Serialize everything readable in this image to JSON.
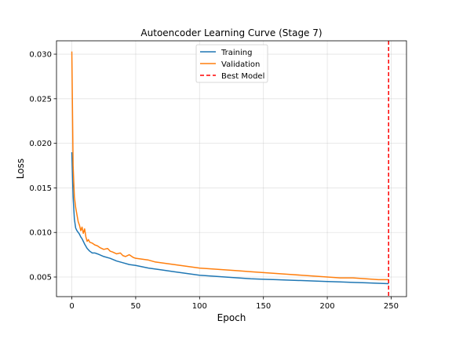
{
  "chart_data": {
    "type": "line",
    "title": "Autoencoder Learning Curve (Stage 7)",
    "xlabel": "Epoch",
    "ylabel": "Loss",
    "xlim": [
      -12,
      262
    ],
    "ylim": [
      0.0028,
      0.0315
    ],
    "xticks": [
      0,
      50,
      100,
      150,
      200,
      250
    ],
    "yticks": [
      0.005,
      0.01,
      0.015,
      0.02,
      0.025,
      0.03
    ],
    "ytick_labels": [
      "0.005",
      "0.010",
      "0.015",
      "0.020",
      "0.025",
      "0.030"
    ],
    "grid": true,
    "legend_position": "top-center",
    "series": [
      {
        "name": "Training",
        "color": "#1f77b4",
        "x": [
          0,
          1,
          2,
          3,
          4,
          5,
          6,
          7,
          8,
          9,
          10,
          12,
          14,
          16,
          18,
          20,
          25,
          30,
          35,
          40,
          45,
          50,
          60,
          70,
          80,
          90,
          100,
          110,
          120,
          130,
          140,
          150,
          160,
          170,
          180,
          190,
          200,
          210,
          220,
          230,
          240,
          248
        ],
        "y": [
          0.019,
          0.014,
          0.0115,
          0.0105,
          0.0102,
          0.01,
          0.0098,
          0.0095,
          0.0093,
          0.009,
          0.0087,
          0.0082,
          0.0079,
          0.0077,
          0.0077,
          0.0076,
          0.0073,
          0.0071,
          0.0068,
          0.0066,
          0.0064,
          0.0063,
          0.006,
          0.0058,
          0.0056,
          0.0054,
          0.0052,
          0.0051,
          0.005,
          0.0049,
          0.0048,
          0.00475,
          0.0047,
          0.00465,
          0.0046,
          0.00455,
          0.0045,
          0.00445,
          0.0044,
          0.00435,
          0.0043,
          0.00425
        ]
      },
      {
        "name": "Validation",
        "color": "#ff7f0e",
        "x": [
          0,
          1,
          2,
          3,
          4,
          5,
          6,
          7,
          8,
          9,
          10,
          11,
          12,
          13,
          14,
          16,
          18,
          20,
          22,
          25,
          28,
          30,
          32,
          35,
          38,
          40,
          42,
          45,
          48,
          50,
          55,
          60,
          65,
          70,
          75,
          80,
          85,
          90,
          95,
          100,
          110,
          120,
          130,
          140,
          150,
          160,
          170,
          180,
          190,
          200,
          210,
          220,
          230,
          240,
          248
        ],
        "y": [
          0.0303,
          0.0175,
          0.014,
          0.0128,
          0.012,
          0.0112,
          0.0108,
          0.0102,
          0.0106,
          0.0099,
          0.0104,
          0.0095,
          0.009,
          0.0092,
          0.0089,
          0.0088,
          0.0086,
          0.0085,
          0.0083,
          0.0081,
          0.0082,
          0.0079,
          0.0078,
          0.0076,
          0.0077,
          0.0074,
          0.0073,
          0.0075,
          0.0072,
          0.0071,
          0.007,
          0.0069,
          0.0067,
          0.0066,
          0.0065,
          0.0064,
          0.0063,
          0.0062,
          0.0061,
          0.006,
          0.0059,
          0.0058,
          0.0057,
          0.0056,
          0.0055,
          0.0054,
          0.0053,
          0.0052,
          0.0051,
          0.005,
          0.0049,
          0.0049,
          0.0048,
          0.0047,
          0.0047
        ]
      },
      {
        "name": "Best Model",
        "color": "#ff0000",
        "style": "dashed",
        "vline_x": 248
      }
    ]
  }
}
